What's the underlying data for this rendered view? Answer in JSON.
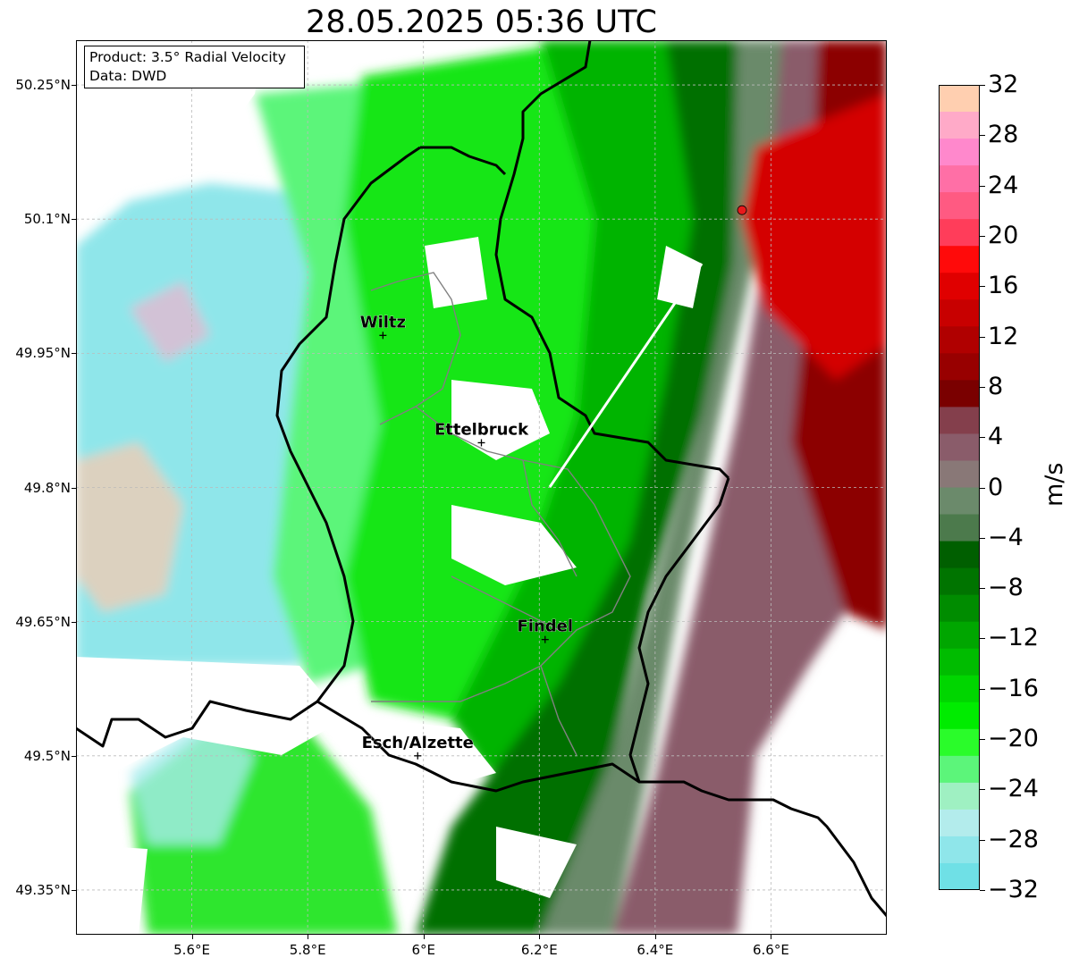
{
  "title": "28.05.2025 05:36 UTC",
  "info": {
    "product": "Product: 3.5° Radial Velocity",
    "data": "Data: DWD"
  },
  "axes": {
    "lon_ticks": [
      "5.6°E",
      "5.8°E",
      "6°E",
      "6.2°E",
      "6.4°E",
      "6.6°E"
    ],
    "lat_ticks": [
      "50.25°N",
      "50.1°N",
      "49.95°N",
      "49.8°N",
      "49.65°N",
      "49.5°N",
      "49.35°N"
    ],
    "lon_range": [
      5.4,
      6.8
    ],
    "lat_range": [
      49.3,
      50.3
    ],
    "gridlines": true
  },
  "cities": [
    {
      "name": "Wiltz",
      "lon": 5.93,
      "lat": 49.97
    },
    {
      "name": "Ettelbruck",
      "lon": 6.1,
      "lat": 49.85
    },
    {
      "name": "Findel",
      "lon": 6.21,
      "lat": 49.63
    },
    {
      "name": "Esch/Alzette",
      "lon": 5.99,
      "lat": 49.5
    }
  ],
  "radar_site": {
    "lon": 6.55,
    "lat": 50.11,
    "color": "#e8191c"
  },
  "colorbar": {
    "label": "m/s",
    "min": -32,
    "max": 32,
    "tick_labels": [
      "32",
      "28",
      "24",
      "20",
      "16",
      "12",
      "8",
      "4",
      "0",
      "−4",
      "−8",
      "−12",
      "−16",
      "−20",
      "−24",
      "−28",
      "−32"
    ],
    "colors_top_to_bottom": [
      "#ffcfb0",
      "#ffaac8",
      "#ff88cc",
      "#ff6fa6",
      "#ff5a82",
      "#ff3d5a",
      "#ff0a0a",
      "#e00000",
      "#c80000",
      "#b00000",
      "#980000",
      "#7a0000",
      "#843f4c",
      "#8a5c6a",
      "#897877",
      "#6b8a6b",
      "#4c7a4c",
      "#005f00",
      "#007400",
      "#008c00",
      "#00a600",
      "#00bc00",
      "#00d600",
      "#00ec00",
      "#2afc2a",
      "#5cf57a",
      "#9ff0c2",
      "#b3ecec",
      "#8fe6ea",
      "#6fe0e6"
    ]
  },
  "chart_data": {
    "type": "heatmap",
    "title": "28.05.2025 05:36 UTC",
    "variable": "3.5° Radial Velocity",
    "unit": "m/s",
    "value_range": [
      -32,
      32
    ],
    "description_of_field": [
      {
        "region": "west / south-west edge",
        "approx_value": -28
      },
      {
        "region": "central Luxembourg",
        "approx_value": -18
      },
      {
        "region": "south-east Luxembourg",
        "approx_value": -8
      },
      {
        "region": "eastern border band",
        "approx_value": 0
      },
      {
        "region": "east near radar",
        "approx_value": 16
      }
    ]
  }
}
